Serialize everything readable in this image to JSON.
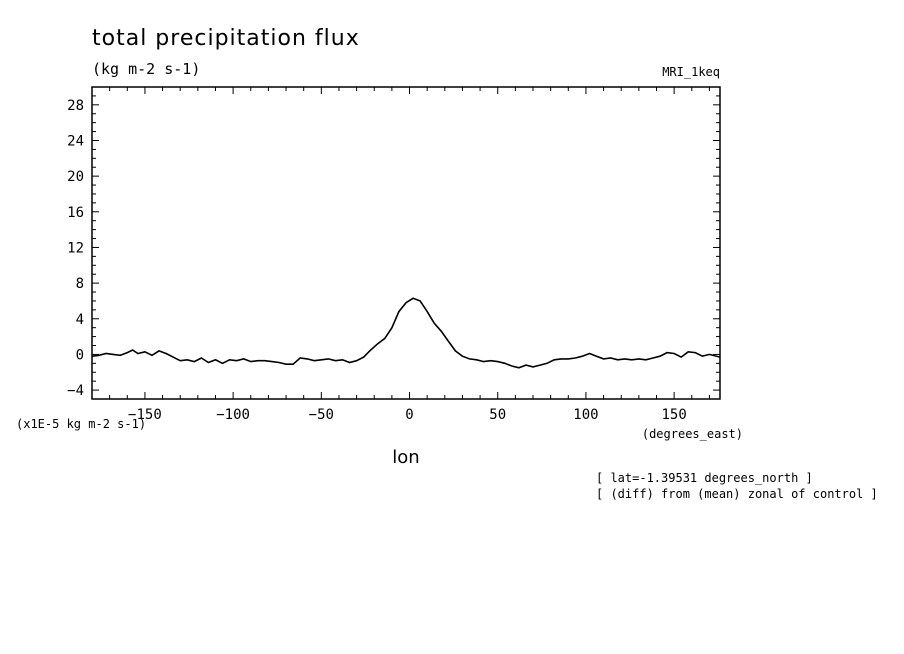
{
  "chart_data": {
    "type": "line",
    "title": "total precipitation flux",
    "subtitle": "(kg m-2 s-1)",
    "dataset_label": "MRI_1keq",
    "xlabel": "lon",
    "x_units": "(degrees_east)",
    "y_units": "(x1E-5 kg m-2 s-1)",
    "notes": [
      "[ lat=-1.39531 degrees_north ]",
      "[ (diff) from (mean) zonal of control ]"
    ],
    "xlim": [
      -180,
      176
    ],
    "ylim": [
      -5,
      30
    ],
    "xticks": [
      -150,
      -100,
      -50,
      0,
      50,
      100,
      150
    ],
    "yticks": [
      -4,
      0,
      4,
      8,
      12,
      16,
      20,
      24,
      28
    ],
    "grid": false,
    "series": [
      {
        "x": [
          -180,
          -176,
          -172,
          -168,
          -164,
          -160,
          -157,
          -154,
          -150,
          -146,
          -142,
          -138,
          -134,
          -130,
          -126,
          -122,
          -118,
          -114,
          -110,
          -106,
          -102,
          -98,
          -94,
          -90,
          -86,
          -82,
          -78,
          -74,
          -70,
          -66,
          -62,
          -58,
          -54,
          -50,
          -46,
          -42,
          -38,
          -34,
          -30,
          -26,
          -22,
          -18,
          -14,
          -10,
          -6,
          -2,
          2,
          6,
          10,
          14,
          18,
          22,
          26,
          30,
          34,
          38,
          42,
          46,
          50,
          54,
          58,
          62,
          66,
          70,
          74,
          78,
          82,
          86,
          90,
          94,
          98,
          102,
          106,
          110,
          114,
          118,
          122,
          126,
          130,
          134,
          138,
          142,
          146,
          150,
          154,
          158,
          162,
          166,
          170,
          176
        ],
        "y": [
          -0.2,
          -0.1,
          0.1,
          0.0,
          -0.1,
          0.2,
          0.5,
          0.1,
          0.3,
          -0.1,
          0.4,
          0.1,
          -0.3,
          -0.7,
          -0.6,
          -0.8,
          -0.4,
          -0.9,
          -0.6,
          -1.0,
          -0.6,
          -0.7,
          -0.5,
          -0.8,
          -0.7,
          -0.7,
          -0.8,
          -0.9,
          -1.1,
          -1.1,
          -0.4,
          -0.5,
          -0.7,
          -0.6,
          -0.5,
          -0.7,
          -0.6,
          -0.9,
          -0.7,
          -0.3,
          0.5,
          1.2,
          1.8,
          3.0,
          4.8,
          5.8,
          6.3,
          6.0,
          4.8,
          3.5,
          2.6,
          1.5,
          0.4,
          -0.2,
          -0.5,
          -0.6,
          -0.8,
          -0.7,
          -0.8,
          -1.0,
          -1.3,
          -1.5,
          -1.2,
          -1.4,
          -1.2,
          -1.0,
          -0.6,
          -0.5,
          -0.5,
          -0.4,
          -0.2,
          0.1,
          -0.2,
          -0.5,
          -0.4,
          -0.6,
          -0.5,
          -0.6,
          -0.5,
          -0.6,
          -0.4,
          -0.2,
          0.2,
          0.1,
          -0.3,
          0.3,
          0.2,
          -0.2,
          0.0,
          -0.3
        ]
      }
    ]
  }
}
